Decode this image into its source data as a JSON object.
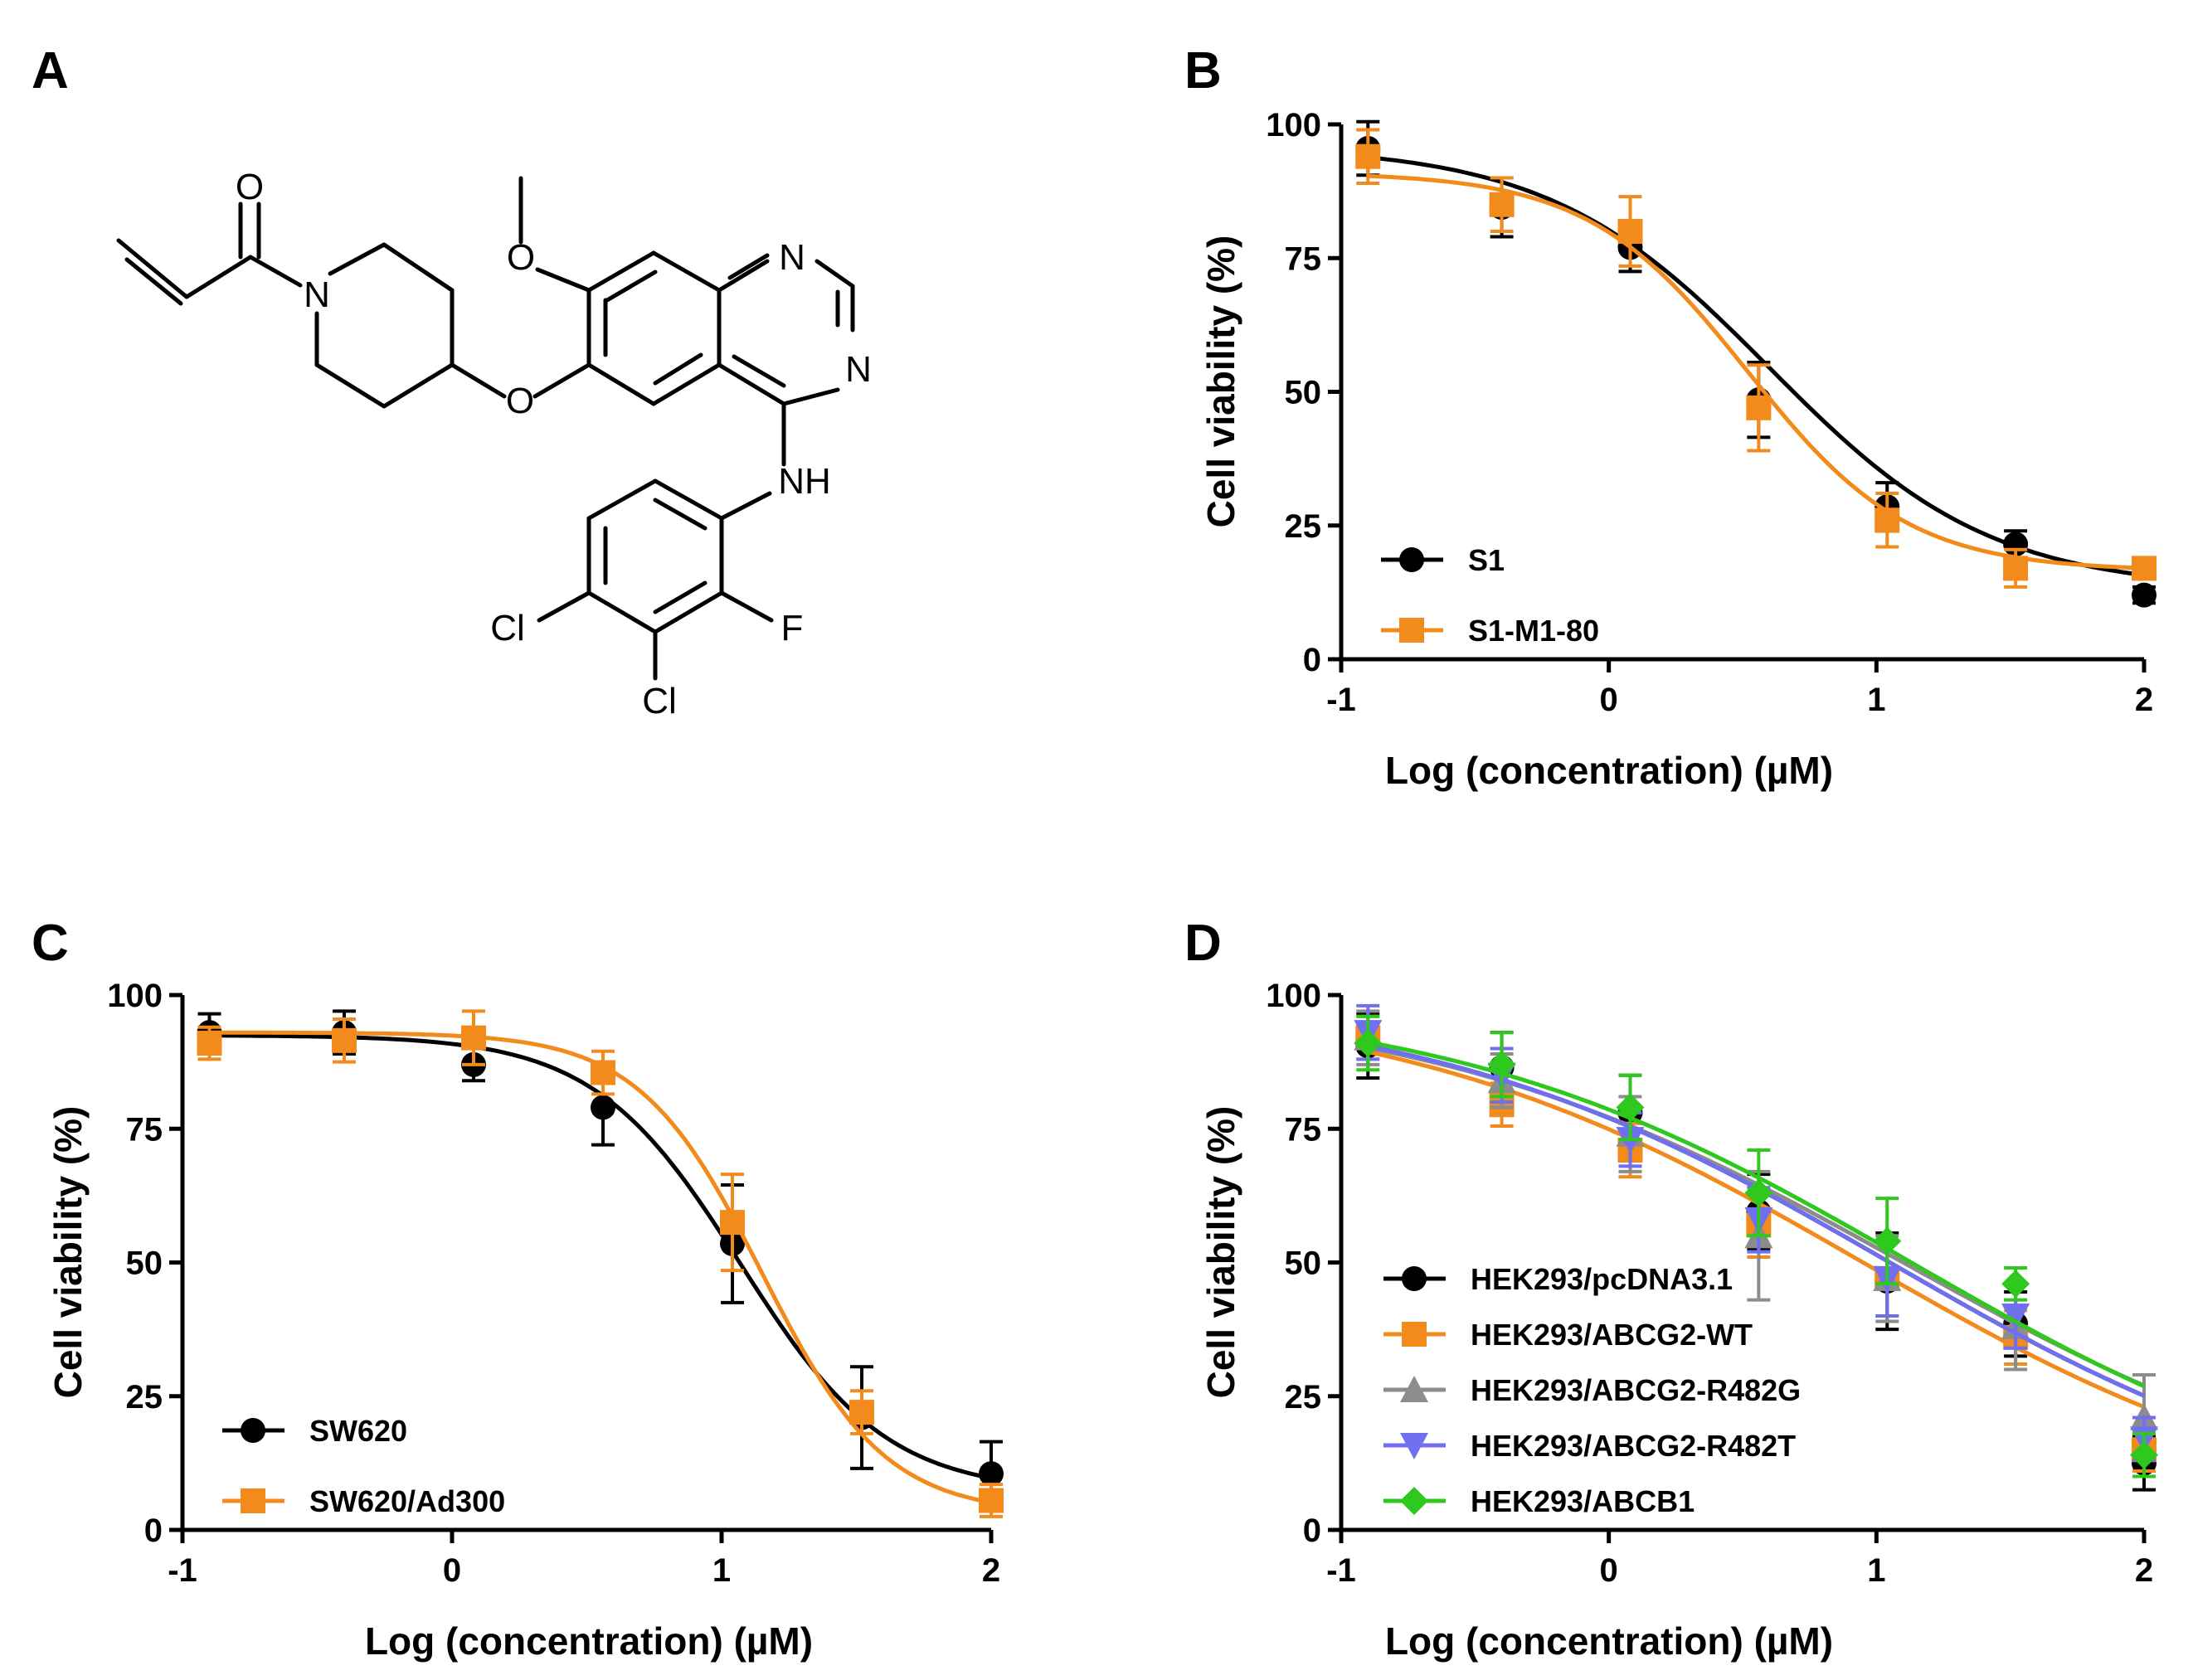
{
  "panels": {
    "a": {
      "label": "A"
    },
    "b": {
      "label": "B"
    },
    "c": {
      "label": "C"
    },
    "d": {
      "label": "D"
    }
  },
  "molecule": {
    "atoms": [
      "O",
      "N",
      "O",
      "N",
      "N",
      "O",
      "NH",
      "Cl",
      "F",
      "Cl"
    ]
  },
  "colors": {
    "black": "#000000",
    "orange": "#f28a1c",
    "gray": "#8c8c8c",
    "blue": "#6f6ff0",
    "green": "#2fc81e"
  },
  "chart_data": [
    {
      "id": "B",
      "type": "line",
      "xlabel": "Log (concentration) (µM)",
      "ylabel": "Cell viability (%)",
      "xlim": [
        -1,
        2
      ],
      "ylim": [
        0,
        100
      ],
      "xticks": [
        -1,
        0,
        1,
        2
      ],
      "yticks": [
        0,
        25,
        50,
        75,
        100
      ],
      "legend_position": "bottom-left",
      "series": [
        {
          "name": "S1",
          "color": "#000000",
          "marker": "circle",
          "x": [
            -0.9,
            -0.4,
            0.08,
            0.56,
            1.04,
            1.52,
            2.0
          ],
          "y": [
            95.5,
            84.5,
            77,
            48.5,
            28.5,
            21.5,
            12
          ],
          "err": [
            5,
            5.5,
            4.5,
            7,
            4.5,
            2.5,
            1.5
          ],
          "fit": {
            "bottom": 13,
            "top": 96,
            "logEC50": 0.6,
            "hill": 1.05
          }
        },
        {
          "name": "S1-M1-80",
          "color": "#f28a1c",
          "marker": "square",
          "x": [
            -0.9,
            -0.4,
            0.08,
            0.56,
            1.04,
            1.52,
            2.0
          ],
          "y": [
            94,
            85,
            80,
            47,
            26,
            17,
            17
          ],
          "err": [
            5,
            5,
            6.5,
            8,
            5,
            3.5,
            2
          ],
          "fit": {
            "bottom": 16.5,
            "top": 91,
            "logEC50": 0.52,
            "hill": 1.45
          }
        }
      ]
    },
    {
      "id": "C",
      "type": "line",
      "xlabel": "Log (concentration) (µM)",
      "ylabel": "Cell viability (%)",
      "xlim": [
        -1,
        2
      ],
      "ylim": [
        0,
        100
      ],
      "xticks": [
        -1,
        0,
        1,
        2
      ],
      "yticks": [
        0,
        25,
        50,
        75,
        100
      ],
      "legend_position": "bottom-left",
      "series": [
        {
          "name": "SW620",
          "color": "#000000",
          "marker": "circle",
          "x": [
            -0.9,
            -0.4,
            0.08,
            0.56,
            1.04,
            1.52,
            2.0
          ],
          "y": [
            93,
            93,
            87,
            79,
            53.5,
            21,
            10.5
          ],
          "err": [
            3.5,
            4,
            3,
            7,
            11,
            9.5,
            6
          ],
          "fit": {
            "bottom": 7,
            "top": 92.5,
            "logEC50": 1.07,
            "hill": 1.6
          }
        },
        {
          "name": "SW620/Ad300",
          "color": "#f28a1c",
          "marker": "square",
          "x": [
            -0.9,
            -0.4,
            0.08,
            0.56,
            1.04,
            1.52,
            2.0
          ],
          "y": [
            91,
            91.5,
            92,
            85.5,
            57.5,
            22,
            5.5
          ],
          "err": [
            3,
            4,
            5,
            4,
            9,
            4,
            3
          ],
          "fit": {
            "bottom": 3,
            "top": 93,
            "logEC50": 1.15,
            "hill": 1.9
          }
        }
      ]
    },
    {
      "id": "D",
      "type": "line",
      "xlabel": "Log (concentration) (µM)",
      "ylabel": "Cell viability (%)",
      "xlim": [
        -1,
        2
      ],
      "ylim": [
        0,
        100
      ],
      "xticks": [
        -1,
        0,
        1,
        2
      ],
      "yticks": [
        0,
        25,
        50,
        75,
        100
      ],
      "legend_position": "bottom-left",
      "series": [
        {
          "name": "HEK293/pcDNA3.1",
          "color": "#000000",
          "marker": "circle",
          "x": [
            -0.9,
            -0.4,
            0.08,
            0.56,
            1.04,
            1.52,
            2.0
          ],
          "y": [
            90.5,
            86.5,
            78,
            59.5,
            46.5,
            38.5,
            12.5
          ],
          "err": [
            6,
            6.5,
            7,
            7,
            9,
            6,
            5
          ],
          "fit": {
            "bottom": 0,
            "top": 100,
            "logEC50": 1.05,
            "hill": 0.5
          }
        },
        {
          "name": "HEK293/ABCG2-WT",
          "color": "#f28a1c",
          "marker": "square",
          "x": [
            -0.9,
            -0.4,
            0.08,
            0.56,
            1.04,
            1.52,
            2.0
          ],
          "y": [
            92,
            79.5,
            71,
            57,
            47,
            36,
            15
          ],
          "err": [
            4,
            4,
            5,
            6,
            7,
            5,
            4
          ],
          "fit": {
            "bottom": 0,
            "top": 100,
            "logEC50": 0.95,
            "hill": 0.5
          }
        },
        {
          "name": "HEK293/ABCG2-R482G",
          "color": "#8c8c8c",
          "marker": "triangle-up",
          "x": [
            -0.9,
            -0.4,
            0.08,
            0.56,
            1.04,
            1.52,
            2.0
          ],
          "y": [
            92,
            84,
            74,
            55,
            47,
            38,
            21
          ],
          "err": [
            5,
            5,
            7,
            12,
            8,
            8,
            8
          ],
          "fit": {
            "bottom": 0,
            "top": 100,
            "logEC50": 1.1,
            "hill": 0.48
          }
        },
        {
          "name": "HEK293/ABCG2-R482T",
          "color": "#6f6ff0",
          "marker": "triangle-down",
          "x": [
            -0.9,
            -0.4,
            0.08,
            0.56,
            1.04,
            1.52,
            2.0
          ],
          "y": [
            93,
            85,
            73,
            58,
            47,
            40,
            17
          ],
          "err": [
            5,
            5,
            5,
            6,
            7,
            6,
            4
          ],
          "fit": {
            "bottom": 0,
            "top": 100,
            "logEC50": 1.05,
            "hill": 0.5
          }
        },
        {
          "name": "HEK293/ABCB1",
          "color": "#2fc81e",
          "marker": "diamond",
          "x": [
            -0.9,
            -0.4,
            0.08,
            0.56,
            1.04,
            1.52,
            2.0
          ],
          "y": [
            91,
            87,
            79,
            63,
            54,
            46,
            14
          ],
          "err": [
            5,
            6,
            6,
            8,
            8,
            3,
            4
          ],
          "fit": {
            "bottom": 0,
            "top": 100,
            "logEC50": 1.13,
            "hill": 0.5
          }
        }
      ]
    }
  ]
}
